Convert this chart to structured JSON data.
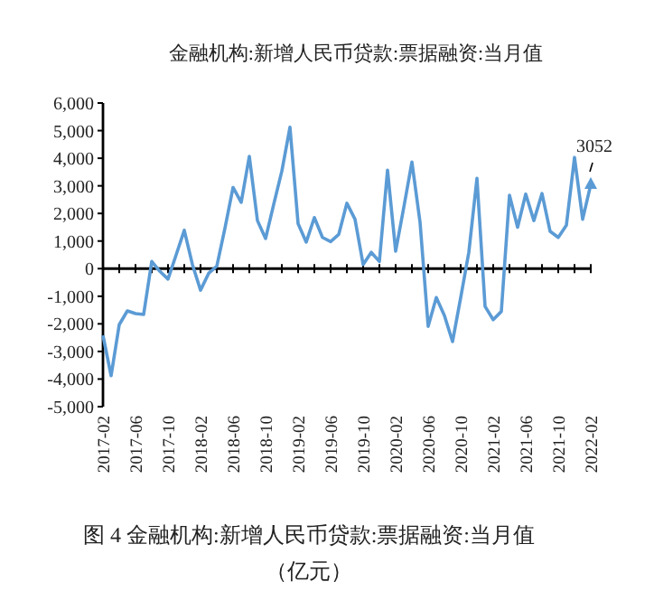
{
  "chart_data": {
    "type": "line",
    "title": "金融机构:新增人民币贷款:票据融资:当月值",
    "categories": [
      "2017-02",
      null,
      null,
      null,
      "2017-06",
      null,
      null,
      null,
      "2017-10",
      null,
      null,
      null,
      "2018-02",
      null,
      null,
      null,
      "2018-06",
      null,
      null,
      null,
      "2018-10",
      null,
      null,
      null,
      "2019-02",
      null,
      null,
      null,
      "2019-06",
      null,
      null,
      null,
      "2019-10",
      null,
      null,
      null,
      "2020-02",
      null,
      null,
      null,
      "2020-06",
      null,
      null,
      null,
      "2020-10",
      null,
      null,
      null,
      "2021-02",
      null,
      null,
      null,
      "2021-06",
      null,
      null,
      null,
      "2021-10",
      null,
      null,
      null,
      "2022-02"
    ],
    "series": [
      {
        "color": "#5b9bd5",
        "values": [
          -2420,
          -3880,
          -2030,
          -1530,
          -1630,
          -1660,
          260,
          -100,
          -380,
          500,
          1390,
          150,
          -780,
          -170,
          90,
          1460,
          2940,
          2400,
          4070,
          1740,
          1090,
          2330,
          3530,
          5120,
          1630,
          960,
          1850,
          1130,
          980,
          1240,
          2370,
          1790,
          150,
          590,
          260,
          3570,
          630,
          2220,
          3860,
          1680,
          -2090,
          -1050,
          -1700,
          -2640,
          -1050,
          590,
          3270,
          -1370,
          -1850,
          -1550,
          2660,
          1500,
          2700,
          1740,
          2720,
          1350,
          1130,
          1570,
          4030,
          1790,
          3052
        ]
      }
    ],
    "ylim": [
      -5000,
      6000
    ],
    "yticks": [
      {
        "value": -5000,
        "label": "-5,000"
      },
      {
        "value": -4000,
        "label": "-4,000"
      },
      {
        "value": -3000,
        "label": "-3,000"
      },
      {
        "value": -2000,
        "label": "-2,000"
      },
      {
        "value": -1000,
        "label": "-1,000"
      },
      0,
      {
        "value": 1000,
        "label": "1,000"
      },
      {
        "value": 2000,
        "label": "2,000"
      },
      {
        "value": 3000,
        "label": "3,000"
      },
      {
        "value": 4000,
        "label": "4,000"
      },
      {
        "value": 5000,
        "label": "5,000"
      },
      {
        "value": 6000,
        "label": "6,000"
      }
    ],
    "annotations": [
      {
        "text": "3052",
        "x": "2022-02",
        "y": 3052
      },
      "图 4  金融机构:新增人民币贷款:票据融资:当月值",
      "（亿元）"
    ]
  }
}
